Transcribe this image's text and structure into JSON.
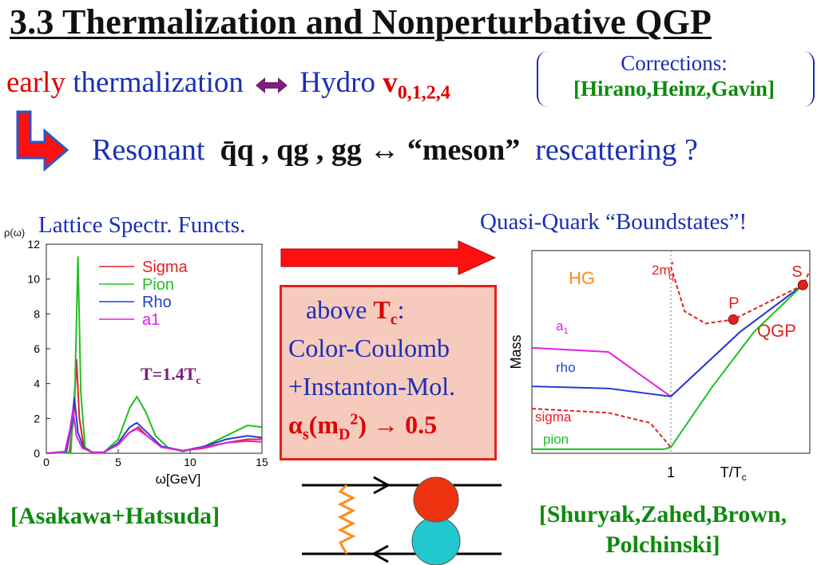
{
  "slide": {
    "title": "3.3 Thermalization and Nonperturbative QGP",
    "line2": {
      "early": "early",
      "thermalization": "thermalization",
      "hydro": "Hydro",
      "v": "v",
      "v_sub": "0,1,2,4"
    },
    "corrections": {
      "title": "Corrections:",
      "names": "[Hirano,Heinz,Gavin]"
    },
    "line3": {
      "resonant": "Resonant",
      "channels": "q̄q , qg , gg ↔ “meson”",
      "rescattering": "rescattering ?"
    },
    "left_label": "Lattice Spectr. Functs.",
    "right_label": "Quasi-Quark “Boundstates”!",
    "box": {
      "above": "above ",
      "T": "T",
      "c": "c",
      "colon": ":",
      "line2": "Color-Coulomb",
      "line3": "+Instanton-Mol.",
      "alpha": "α",
      "s": "s",
      "mD": "(m",
      "D": "D",
      "two": "2",
      "paren": ")",
      "arrow_val": "→ 0.5"
    },
    "cite_left": "[Asakawa+Hatsuda]",
    "cite_right_1": "[Shuryak,Zahed,Brown,",
    "cite_right_2": "Polchinski]"
  },
  "colors": {
    "red": "#e00000",
    "blue": "#1a2fb5",
    "green": "#0e8a0e",
    "box_fill": "#f6cbbe",
    "box_border": "#e3211b"
  },
  "chart_data": [
    {
      "type": "line",
      "ylabel": "ρ(ω)",
      "xlabel": "ω[GeV]",
      "xlim": [
        0,
        15
      ],
      "ylim": [
        0,
        12
      ],
      "xticks": [
        "0",
        "5",
        "10",
        "15"
      ],
      "yticks": [
        "0",
        "2",
        "4",
        "6",
        "8",
        "10",
        "12"
      ],
      "annotation": "T=1.4T",
      "annotation_sub": "c",
      "legend_position": "top-right",
      "series": [
        {
          "name": "Sigma",
          "color": "#e32020",
          "x": [
            0,
            1.6,
            1.9,
            2.1,
            2.3,
            2.6,
            3.2,
            4.0,
            5.0,
            5.8,
            6.4,
            7.0,
            8.0,
            9.5,
            11,
            12.5,
            14,
            15
          ],
          "y": [
            0,
            0.05,
            2.0,
            5.4,
            2.0,
            0.4,
            0.05,
            0.05,
            0.5,
            1.2,
            1.5,
            1.0,
            0.35,
            0.15,
            0.3,
            0.6,
            0.8,
            0.8
          ]
        },
        {
          "name": "Pion",
          "color": "#20c020",
          "x": [
            0,
            1.7,
            2.0,
            2.2,
            2.4,
            2.7,
            3.2,
            4.0,
            5.0,
            5.8,
            6.3,
            6.9,
            7.6,
            8.5,
            9.5,
            11,
            12.5,
            14,
            15
          ],
          "y": [
            0,
            0.05,
            4.0,
            11.3,
            3.5,
            0.3,
            0.05,
            0.05,
            0.8,
            2.6,
            3.25,
            2.4,
            1.0,
            0.3,
            0.1,
            0.4,
            1.0,
            1.6,
            1.5
          ]
        },
        {
          "name": "Rho",
          "color": "#1f3fd0",
          "x": [
            0,
            1.4,
            1.75,
            1.95,
            2.2,
            2.6,
            3.2,
            4.0,
            5.0,
            5.8,
            6.3,
            7.0,
            8.0,
            9.5,
            11,
            12.5,
            14,
            15
          ],
          "y": [
            0,
            0.1,
            1.6,
            3.2,
            1.2,
            0.3,
            0.05,
            0.05,
            0.6,
            1.5,
            1.75,
            1.2,
            0.4,
            0.15,
            0.4,
            0.8,
            1.0,
            0.9
          ]
        },
        {
          "name": "a1",
          "color": "#e020e0",
          "x": [
            0,
            1.3,
            1.65,
            1.85,
            2.1,
            2.5,
            3.2,
            4.0,
            5.0,
            5.8,
            6.3,
            7.0,
            8.0,
            9.5,
            11,
            12.5,
            14,
            15
          ],
          "y": [
            0,
            0.1,
            1.4,
            2.5,
            1.0,
            0.3,
            0.05,
            0.05,
            0.5,
            1.2,
            1.4,
            1.0,
            0.35,
            0.15,
            0.35,
            0.6,
            0.7,
            0.65
          ]
        }
      ]
    },
    {
      "type": "line",
      "ylabel": "Mass",
      "xlabel": "T/T",
      "xlabel_sub": "c",
      "xlim": [
        0,
        2
      ],
      "ylim": [
        0,
        1
      ],
      "xticks": [
        "1"
      ],
      "region_labels": [
        "HG",
        "QGP"
      ],
      "series": [
        {
          "name": "a1",
          "color": "#e020e0",
          "x": [
            0,
            0.55,
            1.0,
            1.5,
            1.95
          ],
          "y": [
            0.52,
            0.5,
            0.28,
            0.6,
            0.83
          ]
        },
        {
          "name": "rho",
          "color": "#1f3fd0",
          "x": [
            0,
            0.55,
            1.0,
            1.5,
            1.95
          ],
          "y": [
            0.33,
            0.32,
            0.28,
            0.6,
            0.83
          ]
        },
        {
          "name": "sigma",
          "color": "#e32020",
          "dashed": true,
          "x": [
            0,
            0.55,
            0.85,
            1.0
          ],
          "y": [
            0.22,
            0.2,
            0.15,
            0.03
          ]
        },
        {
          "name": "pion",
          "color": "#20c020",
          "x": [
            0,
            0.95,
            1.0,
            1.3,
            1.6,
            1.95
          ],
          "y": [
            0.02,
            0.02,
            0.03,
            0.33,
            0.6,
            0.83
          ]
        },
        {
          "name": "2m",
          "superscript": "*",
          "subscript": "q",
          "color": "#e32020",
          "dashed": true,
          "x": [
            1.0,
            1.1,
            1.25,
            1.45,
            1.95,
            2.1
          ],
          "y": [
            0.92,
            0.7,
            0.64,
            0.66,
            0.83,
            0.9
          ]
        }
      ],
      "points": [
        {
          "label": "P",
          "x": 1.45,
          "y": 0.66,
          "color": "#e32020"
        },
        {
          "label": "S",
          "x": 1.95,
          "y": 0.83,
          "color": "#e32020"
        }
      ]
    }
  ]
}
